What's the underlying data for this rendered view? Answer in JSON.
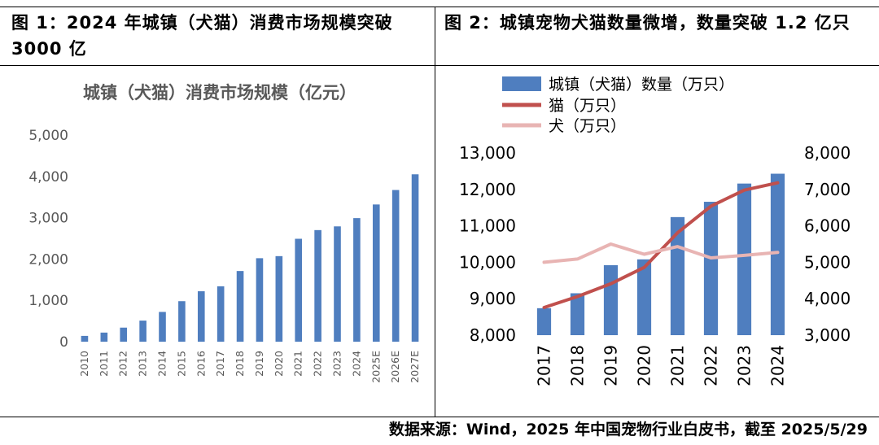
{
  "figures": [
    {
      "caption": "图 1：2024 年城镇（犬猫）消费市场规模突破 3000 亿"
    },
    {
      "caption": "图 2：城镇宠物犬猫数量微增，数量突破 1.2 亿只"
    }
  ],
  "source": "数据来源：Wind，2025 年中国宠物行业白皮书，截至 2025/5/29",
  "chart_data": [
    {
      "type": "bar",
      "title": "城镇（犬猫）消费市场规模（亿元）",
      "categories": [
        "2010",
        "2011",
        "2012",
        "2013",
        "2014",
        "2015",
        "2016",
        "2017",
        "2018",
        "2019",
        "2020",
        "2021",
        "2022",
        "2023",
        "2024",
        "2025E",
        "2026E",
        "2027E"
      ],
      "values": [
        140,
        220,
        340,
        510,
        720,
        980,
        1220,
        1340,
        1710,
        2020,
        2070,
        2490,
        2700,
        2790,
        2990,
        3320,
        3670,
        4050
      ],
      "ylim": [
        0,
        5000
      ],
      "yticks": [
        "0",
        "1,000",
        "2,000",
        "3,000",
        "4,000",
        "5,000"
      ],
      "ytick_values": [
        0,
        1000,
        2000,
        3000,
        4000,
        5000
      ],
      "color": "#4f7ebf",
      "grid": false
    },
    {
      "type": "bar+line",
      "categories": [
        "2017",
        "2018",
        "2019",
        "2020",
        "2021",
        "2022",
        "2023",
        "2024"
      ],
      "legend_position": "top",
      "series": [
        {
          "name": "城镇（犬猫）数量（万只）",
          "type": "bar",
          "axis": "left",
          "color": "#4f7ebf",
          "values": [
            8740,
            9150,
            9920,
            10080,
            11240,
            11660,
            12160,
            12430
          ]
        },
        {
          "name": "猫（万只）",
          "type": "line",
          "axis": "right",
          "color": "#c0504d",
          "values": [
            3760,
            4060,
            4410,
            4860,
            5810,
            6540,
            6980,
            7180
          ]
        },
        {
          "name": "犬（万只）",
          "type": "line",
          "axis": "right",
          "color": "#e8b4b3",
          "values": [
            5000,
            5090,
            5500,
            5220,
            5430,
            5120,
            5190,
            5270
          ]
        }
      ],
      "ylim_left": [
        8000,
        13000
      ],
      "yticks_left": [
        "8,000",
        "9,000",
        "10,000",
        "11,000",
        "12,000",
        "13,000"
      ],
      "ytick_values_left": [
        8000,
        9000,
        10000,
        11000,
        12000,
        13000
      ],
      "ylim_right": [
        3000,
        8000
      ],
      "yticks_right": [
        "3,000",
        "4,000",
        "5,000",
        "6,000",
        "7,000",
        "8,000"
      ],
      "ytick_values_right": [
        3000,
        4000,
        5000,
        6000,
        7000,
        8000
      ],
      "grid": false
    }
  ]
}
